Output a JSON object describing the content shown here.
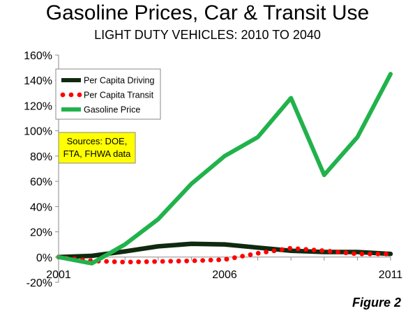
{
  "chart_data": {
    "type": "line",
    "title": "Gasoline Prices, Car & Transit Use",
    "subtitle": "LIGHT DUTY VEHICLES: 2010 TO 2040",
    "x": [
      2001,
      2002,
      2003,
      2004,
      2005,
      2006,
      2007,
      2008,
      2009,
      2010,
      2011
    ],
    "x_tick_labels": [
      "2001",
      "2006",
      "2011"
    ],
    "ylim": [
      -0.2,
      1.6
    ],
    "y_tick_labels": [
      "-20%",
      "0%",
      "20%",
      "40%",
      "60%",
      "80%",
      "100%",
      "120%",
      "140%",
      "160%"
    ],
    "grid": false,
    "legend_position": "top-left",
    "series": [
      {
        "name": "Per Capita Driving",
        "color": "#0f2a0f",
        "style": "solid",
        "values": [
          0.0,
          0.01,
          0.045,
          0.085,
          0.105,
          0.1,
          0.075,
          0.05,
          0.04,
          0.04,
          0.025
        ]
      },
      {
        "name": "Per Capita Transit",
        "color": "#ff0000",
        "style": "dotted",
        "values": [
          0.0,
          -0.03,
          -0.04,
          -0.035,
          -0.03,
          -0.02,
          0.03,
          0.07,
          0.05,
          0.025,
          0.025
        ]
      },
      {
        "name": "Gasoline Price",
        "color": "#21b24c",
        "style": "solid",
        "values": [
          0.0,
          -0.05,
          0.1,
          0.3,
          0.58,
          0.8,
          0.95,
          1.26,
          0.65,
          0.95,
          1.45
        ]
      }
    ],
    "annotation": "Sources: DOE,\nFTA, FHWA data",
    "annotation_bg": "#ffff00"
  },
  "figure_label": "Figure 2"
}
